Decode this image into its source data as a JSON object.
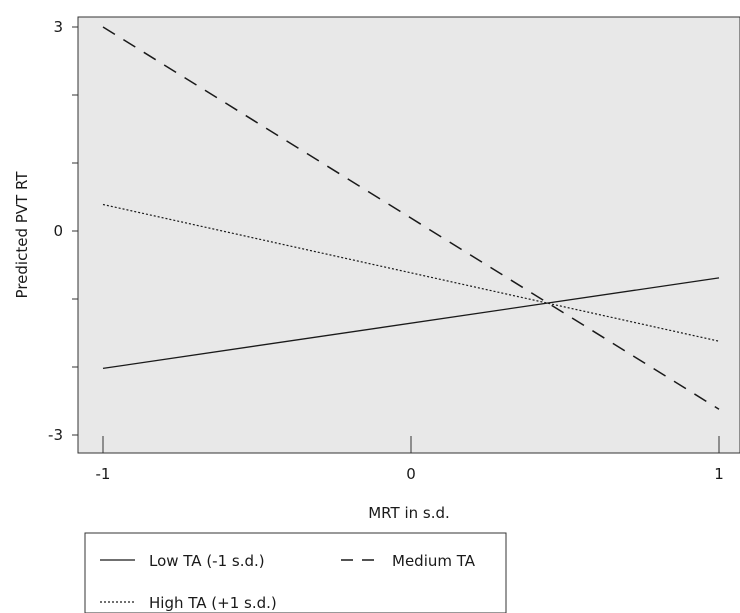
{
  "chart_data": {
    "type": "line",
    "title": "",
    "xlabel": "MRT in s.d.",
    "ylabel": "Predicted PVT RT",
    "xlim": [
      -1,
      1
    ],
    "ylim": [
      -3,
      3
    ],
    "x_ticks": [
      -1,
      0,
      1
    ],
    "x_tick_labels": [
      "-1",
      "0",
      "1"
    ],
    "y_ticks": [
      -3,
      -2,
      -1,
      0,
      1,
      2,
      3
    ],
    "y_tick_labels": [
      "-3",
      "",
      "",
      "0",
      "",
      "",
      "3"
    ],
    "grid": false,
    "background": "#e8e8e8",
    "legend_position": "bottom-left",
    "series": [
      {
        "name": "Low TA (-1 s.d.)",
        "style": "solid",
        "x": [
          -1,
          1
        ],
        "y": [
          -2.02,
          -0.69
        ]
      },
      {
        "name": "Medium TA",
        "style": "dashed",
        "x": [
          -1,
          1
        ],
        "y": [
          3.0,
          -2.62
        ]
      },
      {
        "name": "High TA (+1 s.d.)",
        "style": "dotted",
        "x": [
          -1,
          1
        ],
        "y": [
          0.39,
          -1.62
        ]
      }
    ]
  }
}
